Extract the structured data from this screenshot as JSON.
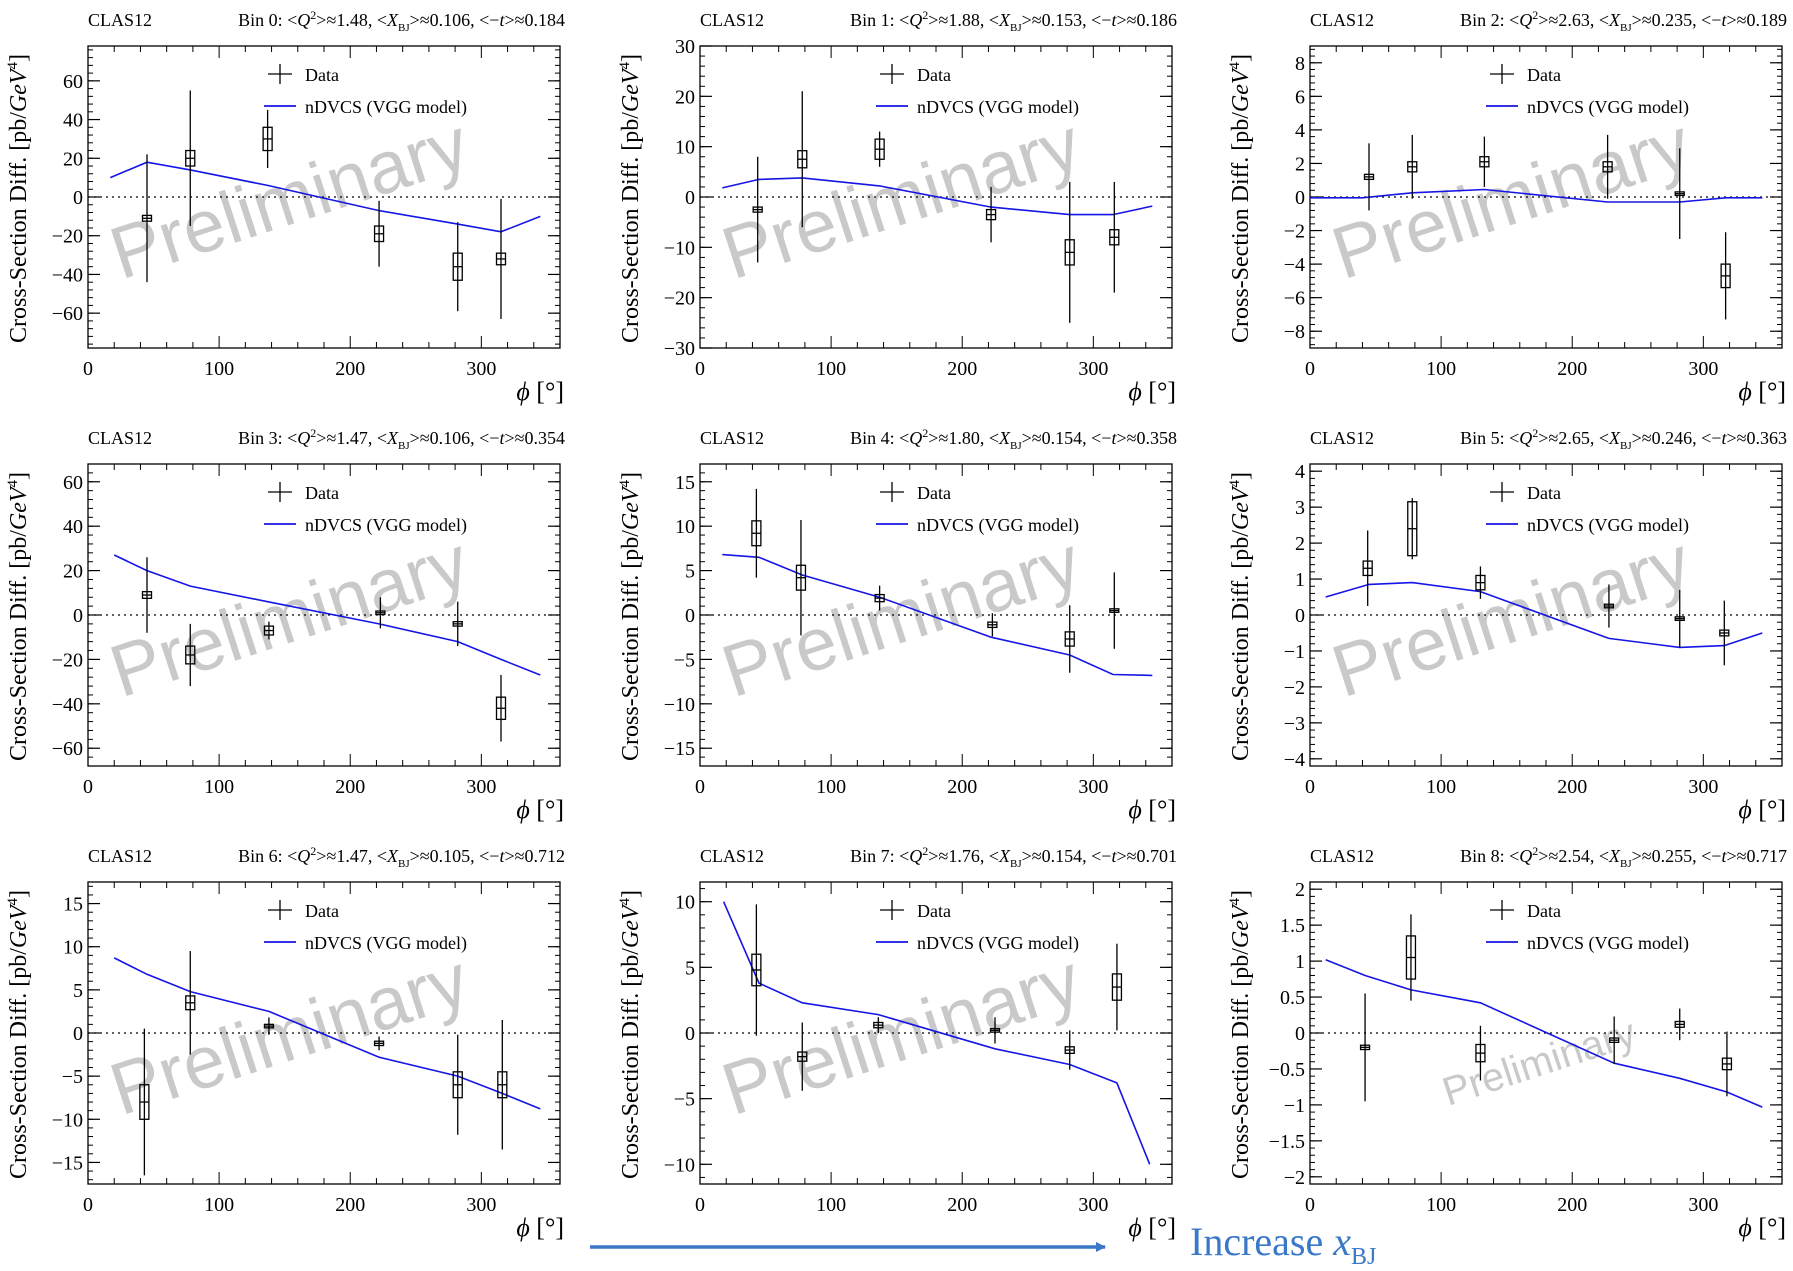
{
  "figure": {
    "experiment_label": "CLAS12",
    "ylabel_main": "Cross-Section Diff. [pb/",
    "ylabel_unit": "GeV",
    "ylabel_exp": "4",
    "ylabel_end": "]",
    "xlabel_sym": "ϕ",
    "xlabel_unit": " [°]",
    "legend_data": "Data",
    "legend_model": "nDVCS (VGG model)",
    "watermark": "Preliminary",
    "arrow_label": "Increase ",
    "arrow_label_sym": "x",
    "arrow_label_sub": "BJ",
    "colors": {
      "model": "#1515e6",
      "data": "#000000",
      "watermark": "#c9c9c9",
      "arrow": "#3a78c8"
    }
  },
  "chart_data": [
    {
      "type": "scatter",
      "title": "Bin 0",
      "q2": "1.48",
      "xbj": "0.106",
      "t": "0.184",
      "xlim": [
        0,
        360
      ],
      "ylim": [
        -78,
        78
      ],
      "yticks": [
        -60,
        -40,
        -20,
        0,
        20,
        40,
        60
      ],
      "xticks": [
        0,
        100,
        200,
        300
      ],
      "data": [
        {
          "x": 45,
          "y": -11,
          "err": 33,
          "sys": 1.5
        },
        {
          "x": 78,
          "y": 20,
          "err": 35,
          "sys": 4
        },
        {
          "x": 137,
          "y": 30,
          "err": 15,
          "sys": 6
        },
        {
          "x": 222,
          "y": -19,
          "err": 17,
          "sys": 4
        },
        {
          "x": 282,
          "y": -36,
          "err": 23,
          "sys": 7
        },
        {
          "x": 315,
          "y": -32,
          "err": 31,
          "sys": 3
        }
      ],
      "model": [
        [
          17,
          10
        ],
        [
          45,
          18
        ],
        [
          78,
          14
        ],
        [
          137,
          6
        ],
        [
          222,
          -7
        ],
        [
          282,
          -14
        ],
        [
          315,
          -18
        ],
        [
          345,
          -10
        ]
      ]
    },
    {
      "type": "scatter",
      "title": "Bin 1",
      "q2": "1.88",
      "xbj": "0.153",
      "t": "0.186",
      "xlim": [
        0,
        360
      ],
      "ylim": [
        -30,
        30
      ],
      "yticks": [
        -30,
        -20,
        -10,
        0,
        10,
        20,
        30
      ],
      "xticks": [
        0,
        100,
        200,
        300
      ],
      "data": [
        {
          "x": 44,
          "y": -2.5,
          "err": 10.5,
          "sys": 0.5
        },
        {
          "x": 78,
          "y": 7.5,
          "err": 13.5,
          "sys": 1.7
        },
        {
          "x": 137,
          "y": 9.5,
          "err": 3.5,
          "sys": 2
        },
        {
          "x": 222,
          "y": -3.5,
          "err": 5.5,
          "sys": 1
        },
        {
          "x": 282,
          "y": -11,
          "err": 14,
          "sys": 2.5
        },
        {
          "x": 316,
          "y": -8,
          "err": 11,
          "sys": 1.5
        }
      ],
      "model": [
        [
          17,
          1.8
        ],
        [
          45,
          3.5
        ],
        [
          78,
          3.8
        ],
        [
          137,
          2.2
        ],
        [
          222,
          -2
        ],
        [
          282,
          -3.5
        ],
        [
          315,
          -3.5
        ],
        [
          345,
          -1.8
        ]
      ]
    },
    {
      "type": "scatter",
      "title": "Bin 2",
      "q2": "2.63",
      "xbj": "0.235",
      "t": "0.189",
      "xlim": [
        0,
        360
      ],
      "ylim": [
        -9,
        9
      ],
      "yticks": [
        -8,
        -6,
        -4,
        -2,
        0,
        2,
        4,
        6,
        8
      ],
      "xticks": [
        0,
        100,
        200,
        300
      ],
      "data": [
        {
          "x": 45,
          "y": 1.2,
          "err": 2,
          "sys": 0.15
        },
        {
          "x": 78,
          "y": 1.8,
          "err": 1.9,
          "sys": 0.3
        },
        {
          "x": 133,
          "y": 2.1,
          "err": 1.5,
          "sys": 0.3
        },
        {
          "x": 227,
          "y": 1.8,
          "err": 1.9,
          "sys": 0.3
        },
        {
          "x": 282,
          "y": 0.2,
          "err": 2.7,
          "sys": 0.05
        },
        {
          "x": 317,
          "y": -4.7,
          "err": 2.6,
          "sys": 0.7
        }
      ],
      "model": [
        [
          0,
          -0.05
        ],
        [
          40,
          -0.05
        ],
        [
          78,
          0.25
        ],
        [
          133,
          0.45
        ],
        [
          227,
          -0.3
        ],
        [
          282,
          -0.3
        ],
        [
          317,
          -0.05
        ],
        [
          345,
          -0.05
        ]
      ]
    },
    {
      "type": "scatter",
      "title": "Bin 3",
      "q2": "1.47",
      "xbj": "0.106",
      "t": "0.354",
      "xlim": [
        0,
        360
      ],
      "ylim": [
        -68,
        68
      ],
      "yticks": [
        -60,
        -40,
        -20,
        0,
        20,
        40,
        60
      ],
      "xticks": [
        0,
        100,
        200,
        300
      ],
      "data": [
        {
          "x": 45,
          "y": 9,
          "err": 17,
          "sys": 1.5
        },
        {
          "x": 78,
          "y": -18,
          "err": 14,
          "sys": 4
        },
        {
          "x": 138,
          "y": -7,
          "err": 4,
          "sys": 2
        },
        {
          "x": 223,
          "y": 1,
          "err": 7,
          "sys": 0.5
        },
        {
          "x": 282,
          "y": -4,
          "err": 10,
          "sys": 1
        },
        {
          "x": 315,
          "y": -42,
          "err": 15,
          "sys": 5
        }
      ],
      "model": [
        [
          20,
          27
        ],
        [
          45,
          20
        ],
        [
          78,
          13
        ],
        [
          137,
          6
        ],
        [
          222,
          -4
        ],
        [
          282,
          -12
        ],
        [
          315,
          -20
        ],
        [
          345,
          -27
        ]
      ]
    },
    {
      "type": "scatter",
      "title": "Bin 4",
      "q2": "1.80",
      "xbj": "0.154",
      "t": "0.358",
      "xlim": [
        0,
        360
      ],
      "ylim": [
        -17,
        17
      ],
      "yticks": [
        -15,
        -10,
        -5,
        0,
        5,
        10,
        15
      ],
      "xticks": [
        0,
        100,
        200,
        300
      ],
      "data": [
        {
          "x": 43,
          "y": 9.2,
          "err": 5,
          "sys": 1.4
        },
        {
          "x": 77,
          "y": 4.2,
          "err": 6.5,
          "sys": 1.4
        },
        {
          "x": 137,
          "y": 1.9,
          "err": 1.4,
          "sys": 0.4
        },
        {
          "x": 223,
          "y": -1.1,
          "err": 1.3,
          "sys": 0.3
        },
        {
          "x": 282,
          "y": -2.7,
          "err": 3.8,
          "sys": 0.8
        },
        {
          "x": 316,
          "y": 0.5,
          "err": 4.3,
          "sys": 0.05
        }
      ],
      "model": [
        [
          17,
          6.8
        ],
        [
          45,
          6.5
        ],
        [
          78,
          4.5
        ],
        [
          137,
          2
        ],
        [
          222,
          -2.5
        ],
        [
          282,
          -4.5
        ],
        [
          315,
          -6.7
        ],
        [
          345,
          -6.8
        ]
      ]
    },
    {
      "type": "scatter",
      "title": "Bin 5",
      "q2": "2.65",
      "xbj": "0.246",
      "t": "0.363",
      "xlim": [
        0,
        360
      ],
      "ylim": [
        -4.2,
        4.2
      ],
      "yticks": [
        -4,
        -3,
        -2,
        -1,
        0,
        1,
        2,
        3,
        4
      ],
      "xticks": [
        0,
        100,
        200,
        300
      ],
      "data": [
        {
          "x": 44,
          "y": 1.3,
          "err": 1.05,
          "sys": 0.2
        },
        {
          "x": 78,
          "y": 2.4,
          "err": 0.85,
          "sys": 0.75
        },
        {
          "x": 130,
          "y": 0.9,
          "err": 0.45,
          "sys": 0.2
        },
        {
          "x": 228,
          "y": 0.25,
          "err": 0.6,
          "sys": 0.05
        },
        {
          "x": 282,
          "y": -0.1,
          "err": 0.8,
          "sys": 0.02
        },
        {
          "x": 316,
          "y": -0.5,
          "err": 0.9,
          "sys": 0.08
        }
      ],
      "model": [
        [
          12,
          0.5
        ],
        [
          45,
          0.85
        ],
        [
          78,
          0.9
        ],
        [
          130,
          0.65
        ],
        [
          228,
          -0.65
        ],
        [
          282,
          -0.9
        ],
        [
          316,
          -0.85
        ],
        [
          345,
          -0.5
        ]
      ]
    },
    {
      "type": "scatter",
      "title": "Bin 6",
      "q2": "1.47",
      "xbj": "0.105",
      "t": "0.712",
      "xlim": [
        0,
        360
      ],
      "ylim": [
        -17.5,
        17.5
      ],
      "yticks": [
        -15,
        -10,
        -5,
        0,
        5,
        10,
        15
      ],
      "xticks": [
        0,
        100,
        200,
        300
      ],
      "data": [
        {
          "x": 43,
          "y": -8,
          "err": 8.5,
          "sys": 2
        },
        {
          "x": 78,
          "y": 3.5,
          "err": 6,
          "sys": 0.8
        },
        {
          "x": 138,
          "y": 0.8,
          "err": 1,
          "sys": 0.15
        },
        {
          "x": 222,
          "y": -1.2,
          "err": 0.8,
          "sys": 0.25
        },
        {
          "x": 282,
          "y": -6,
          "err": 5.8,
          "sys": 1.5
        },
        {
          "x": 316,
          "y": -6,
          "err": 7.5,
          "sys": 1.5
        }
      ],
      "model": [
        [
          20,
          8.7
        ],
        [
          45,
          6.8
        ],
        [
          78,
          4.8
        ],
        [
          138,
          2.5
        ],
        [
          222,
          -2.8
        ],
        [
          282,
          -5
        ],
        [
          316,
          -7
        ],
        [
          345,
          -8.8
        ]
      ]
    },
    {
      "type": "scatter",
      "title": "Bin 7",
      "q2": "1.76",
      "xbj": "0.154",
      "t": "0.701",
      "xlim": [
        0,
        360
      ],
      "ylim": [
        -11.5,
        11.5
      ],
      "yticks": [
        -10,
        -5,
        0,
        5,
        10
      ],
      "xticks": [
        0,
        100,
        200,
        300
      ],
      "data": [
        {
          "x": 43,
          "y": 4.8,
          "err": 5,
          "sys": 1.2
        },
        {
          "x": 78,
          "y": -1.8,
          "err": 2.6,
          "sys": 0.35
        },
        {
          "x": 136,
          "y": 0.6,
          "err": 0.6,
          "sys": 0.2
        },
        {
          "x": 225,
          "y": 0.2,
          "err": 1,
          "sys": 0.05
        },
        {
          "x": 282,
          "y": -1.3,
          "err": 1.5,
          "sys": 0.25
        },
        {
          "x": 318,
          "y": 3.5,
          "err": 3.3,
          "sys": 1
        }
      ],
      "model": [
        [
          18,
          10
        ],
        [
          45,
          3.8
        ],
        [
          78,
          2.3
        ],
        [
          136,
          1.4
        ],
        [
          225,
          -1.2
        ],
        [
          282,
          -2.4
        ],
        [
          318,
          -3.8
        ],
        [
          343,
          -10
        ]
      ]
    },
    {
      "type": "scatter",
      "title": "Bin 8",
      "q2": "2.54",
      "xbj": "0.255",
      "t": "0.717",
      "xlim": [
        0,
        360
      ],
      "ylim": [
        -2.1,
        2.1
      ],
      "yticks": [
        -2,
        -1.5,
        -1,
        -0.5,
        0,
        0.5,
        1,
        1.5,
        2
      ],
      "xticks": [
        0,
        100,
        200,
        300
      ],
      "data": [
        {
          "x": 42,
          "y": -0.2,
          "err": 0.75,
          "sys": 0.03
        },
        {
          "x": 77,
          "y": 1.05,
          "err": 0.6,
          "sys": 0.3
        },
        {
          "x": 130,
          "y": -0.28,
          "err": 0.38,
          "sys": 0.12
        },
        {
          "x": 232,
          "y": -0.1,
          "err": 0.33,
          "sys": 0.03
        },
        {
          "x": 282,
          "y": 0.12,
          "err": 0.22,
          "sys": 0.04
        },
        {
          "x": 318,
          "y": -0.43,
          "err": 0.45,
          "sys": 0.08
        }
      ],
      "model": [
        [
          12,
          1.02
        ],
        [
          42,
          0.8
        ],
        [
          77,
          0.6
        ],
        [
          130,
          0.42
        ],
        [
          232,
          -0.42
        ],
        [
          282,
          -0.63
        ],
        [
          318,
          -0.82
        ],
        [
          345,
          -1.03
        ]
      ]
    }
  ]
}
